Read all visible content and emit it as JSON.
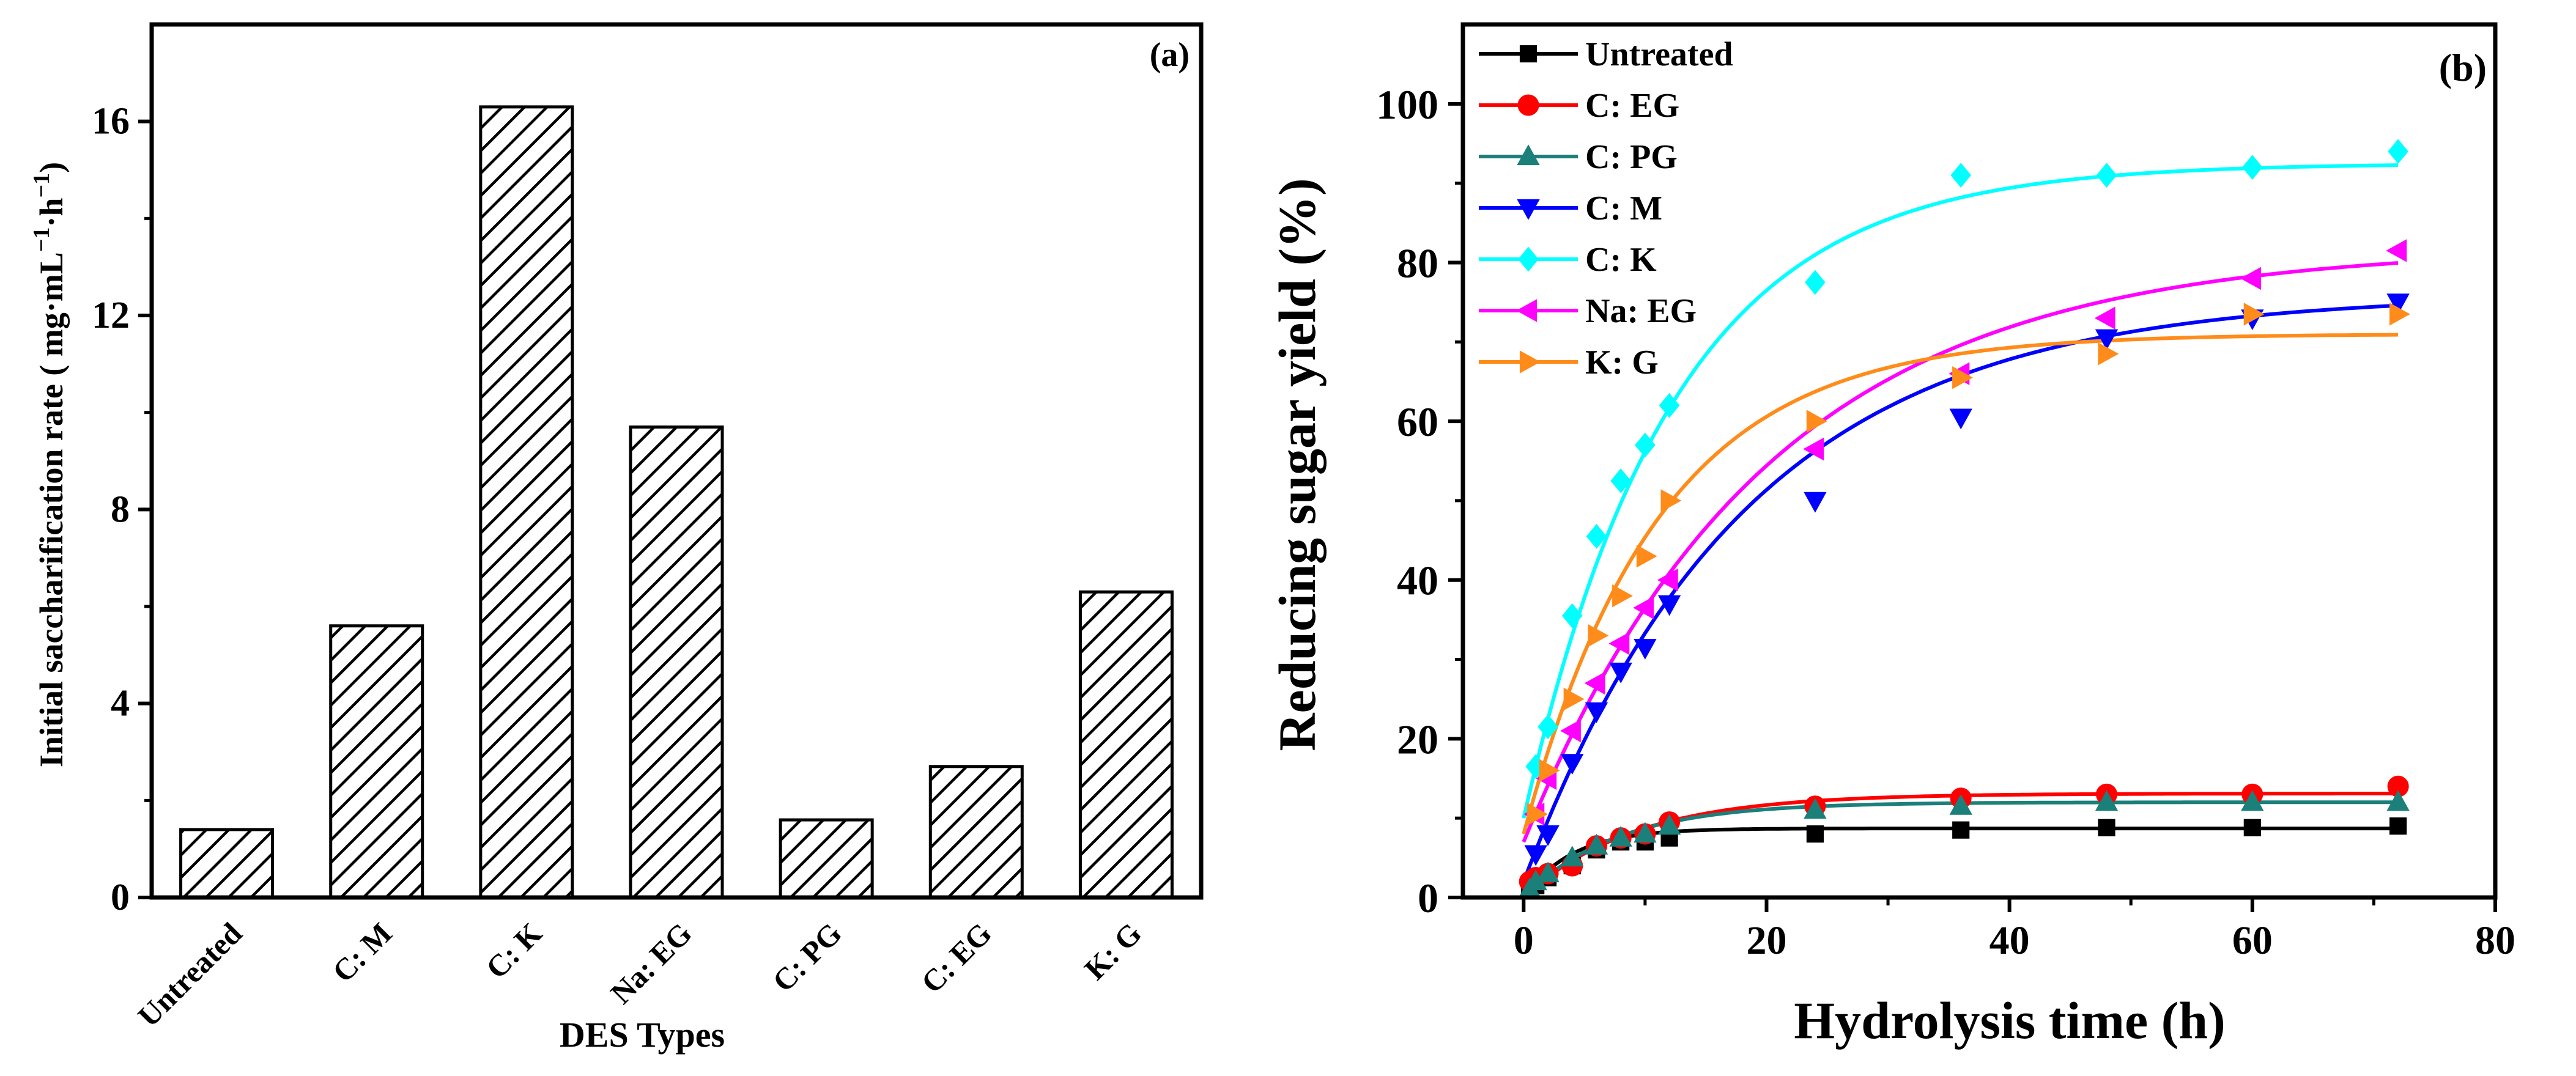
{
  "chart_data": [
    {
      "type": "bar",
      "panel_label": "(a)",
      "xlabel": "DES Types",
      "ylabel": "Initial saccharification rate ( mg·mL",
      "ylabel_unit_a": "−1",
      "ylabel_unit_mid": "·h",
      "ylabel_unit_b": "−1",
      "ylabel_close": ")",
      "ylim": [
        0,
        18
      ],
      "yticks": [
        0,
        4,
        8,
        12,
        16
      ],
      "categories": [
        "Untreated",
        "C:  M",
        "C:  K",
        "Na:  EG",
        "C:  PG",
        "C:  EG",
        "K:  G"
      ],
      "values": [
        1.4,
        5.6,
        16.3,
        9.7,
        1.6,
        2.7,
        6.3
      ],
      "bar_fill": "hatched"
    },
    {
      "type": "scatter",
      "panel_label": "(b)",
      "xlabel": "Hydrolysis time (h)",
      "ylabel": "Reducing sugar yield (%)",
      "xlim": [
        -5,
        80
      ],
      "ylim": [
        0,
        110
      ],
      "xticks": [
        0,
        20,
        40,
        60,
        80
      ],
      "yticks": [
        0,
        20,
        40,
        60,
        80,
        100
      ],
      "legend_position": "top-left",
      "series": [
        {
          "name": "Untreated",
          "color": "#000000",
          "marker": "square",
          "x": [
            0.5,
            1,
            2,
            4,
            6,
            8,
            10,
            12,
            24,
            36,
            48,
            60,
            72
          ],
          "y": [
            0.5,
            1.5,
            2.5,
            4,
            6,
            7,
            7,
            7.5,
            8,
            8.5,
            8.8,
            8.8,
            9
          ],
          "fit_max": 8.7,
          "fit_k": 0.25
        },
        {
          "name": "C: EG",
          "color": "#ff0000",
          "marker": "circle",
          "x": [
            0.5,
            1,
            2,
            4,
            6,
            8,
            10,
            12,
            24,
            36,
            48,
            60,
            72
          ],
          "y": [
            2,
            2.5,
            3,
            4,
            6.5,
            7.5,
            8,
            9.5,
            11.5,
            12.5,
            13,
            13,
            14
          ],
          "fit_max": 13.1,
          "fit_k": 0.11
        },
        {
          "name": "C: PG",
          "color": "#1b7f7a",
          "marker": "triangle-up",
          "x": [
            0.5,
            1,
            2,
            4,
            6,
            8,
            10,
            12,
            24,
            36,
            48,
            60,
            72
          ],
          "y": [
            1,
            2,
            3,
            5,
            6.5,
            7.5,
            8,
            9,
            11,
            11.5,
            12,
            12,
            12
          ],
          "fit_max": 12,
          "fit_k": 0.13
        },
        {
          "name": "C: M",
          "color": "#0000ff",
          "marker": "triangle-down",
          "x": [
            1,
            2,
            4,
            6,
            8,
            10,
            12,
            24,
            36,
            48,
            60,
            72
          ],
          "y": [
            5.5,
            8,
            17,
            23.5,
            28.5,
            31.5,
            37,
            50,
            60.5,
            70.5,
            73,
            75
          ],
          "fit_max": 76,
          "fit_k": 0.055,
          "fit_y0": 2
        },
        {
          "name": "C: K",
          "color": "#00ffff",
          "marker": "diamond",
          "x": [
            1,
            2,
            4,
            6,
            8,
            10,
            12,
            24,
            36,
            48,
            60,
            72
          ],
          "y": [
            16.5,
            21.5,
            35.5,
            45.5,
            52.5,
            57,
            62,
            77.5,
            91,
            91,
            92,
            94
          ],
          "fit_max": 92.5,
          "fit_k": 0.082,
          "fit_y0": 10
        },
        {
          "name": "Na: EG",
          "color": "#ff00ff",
          "marker": "triangle-left",
          "x": [
            1,
            2,
            4,
            6,
            8,
            10,
            12,
            24,
            36,
            48,
            60,
            72
          ],
          "y": [
            10.5,
            15,
            21,
            27,
            32,
            36.5,
            40,
            56.5,
            66,
            73,
            78,
            81.5
          ],
          "fit_max": 82,
          "fit_k": 0.05,
          "fit_y0": 7
        },
        {
          "name": "K: G",
          "color": "#ff8c1a",
          "marker": "triangle-right",
          "x": [
            1,
            2,
            4,
            6,
            8,
            10,
            12,
            24,
            36,
            48,
            60,
            72
          ],
          "y": [
            10.5,
            16,
            25,
            33,
            38,
            43,
            50,
            60,
            65.5,
            68.5,
            73.5,
            73.5
          ],
          "fit_max": 71,
          "fit_k": 0.09,
          "fit_y0": 8
        }
      ]
    }
  ]
}
